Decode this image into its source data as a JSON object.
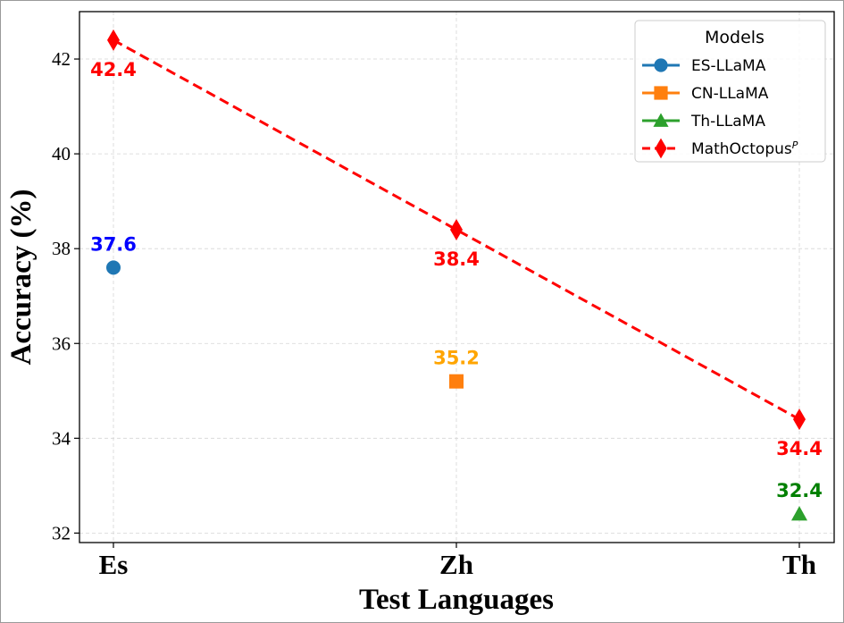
{
  "chart_data": {
    "type": "line",
    "categories": [
      "Es",
      "Zh",
      "Th"
    ],
    "xlabel": "Test Languages",
    "ylabel": "Accuracy (%)",
    "ylim": [
      31.8,
      43.0
    ],
    "yticks": [
      32,
      34,
      36,
      38,
      40,
      42
    ],
    "grid": true,
    "legend": {
      "title": "Models",
      "position": "top-right"
    },
    "series": [
      {
        "name": "ES-LLaMA",
        "name_sup": "",
        "marker": "circle",
        "color": "#1f77b4",
        "label_color": "#0000ff",
        "label_pos": "above",
        "line": "solid",
        "values": [
          37.6,
          null,
          null
        ]
      },
      {
        "name": "CN-LLaMA",
        "name_sup": "",
        "marker": "square",
        "color": "#ff7f0e",
        "label_color": "#ffa500",
        "label_pos": "above",
        "line": "solid",
        "values": [
          null,
          35.2,
          null
        ]
      },
      {
        "name": "Th-LLaMA",
        "name_sup": "",
        "marker": "triangle",
        "color": "#2ca02c",
        "label_color": "#008000",
        "label_pos": "above",
        "line": "solid",
        "values": [
          null,
          null,
          32.4
        ]
      },
      {
        "name": "MathOctopus",
        "name_sup": "P",
        "marker": "diamond",
        "color": "#ff0000",
        "label_color": "#ff0000",
        "label_pos": "below",
        "line": "dashed",
        "values": [
          42.4,
          38.4,
          34.4
        ]
      }
    ]
  }
}
